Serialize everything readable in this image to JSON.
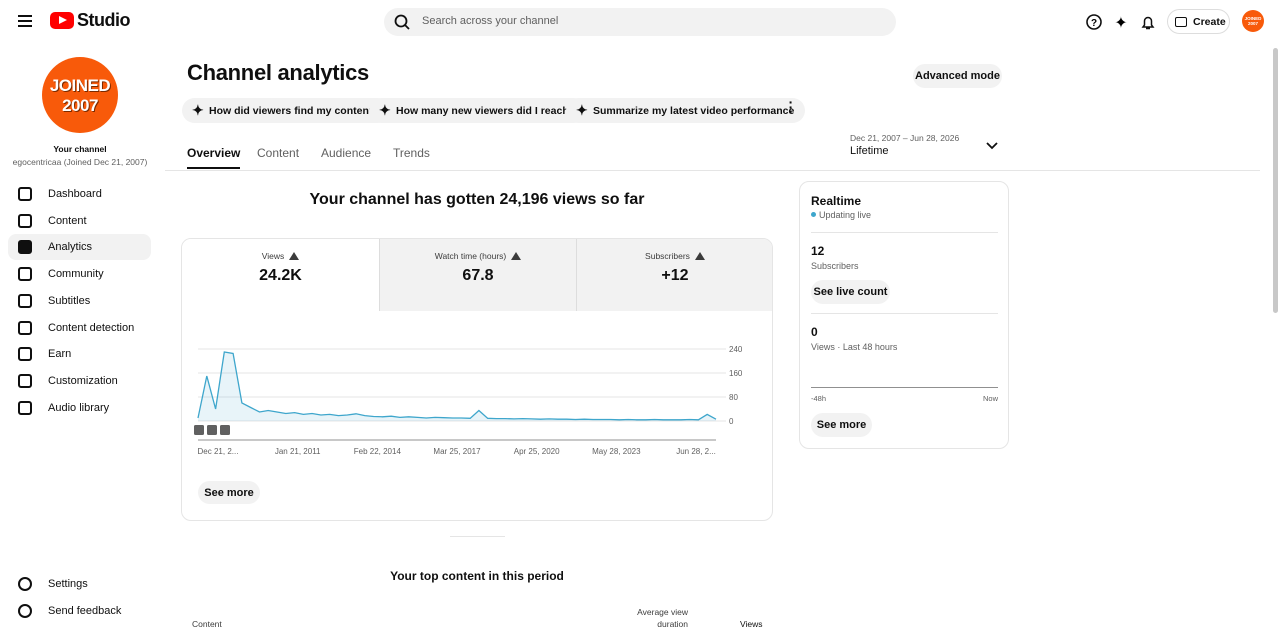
{
  "topbar": {
    "logo": "Studio",
    "search_placeholder": "Search across your channel",
    "create": "Create",
    "avatar_line1": "JOINED",
    "avatar_line2": "2007"
  },
  "sidebar": {
    "channel_label": "Your channel",
    "channel_name": "egocentricaa (Joined Dec 21, 2007)",
    "nav": [
      "Dashboard",
      "Content",
      "Analytics",
      "Community",
      "Subtitles",
      "Content detection",
      "Earn",
      "Customization",
      "Audio library"
    ],
    "active": 2,
    "bottom": [
      "Settings",
      "Send feedback"
    ]
  },
  "header": {
    "title": "Channel analytics",
    "advanced_mode": "Advanced mode",
    "chips": [
      "How did viewers find my content?",
      "How many new viewers did I reach?",
      "Summarize my latest video performance"
    ],
    "tabs": [
      "Overview",
      "Content",
      "Audience",
      "Trends"
    ],
    "active_tab": 0,
    "date_range": "Dec 21, 2007 – Jun 28, 2026",
    "period": "Lifetime"
  },
  "summary": {
    "headline": "Your channel has gotten 24,196 views so far",
    "metrics": [
      {
        "label": "Views",
        "value": "24.2K"
      },
      {
        "label": "Watch time (hours)",
        "value": "67.8"
      },
      {
        "label": "Subscribers",
        "value": "+12"
      }
    ],
    "see_more": "See more"
  },
  "chart": {
    "type": "line",
    "color": "#3ea6cc",
    "ylim": [
      0,
      240
    ],
    "yticks": [
      0,
      80,
      160,
      240
    ],
    "xlabels": [
      "Dec 21, 2...",
      "Jan 21, 2011",
      "Feb 22, 2014",
      "Mar 25, 2017",
      "Apr 25, 2020",
      "May 28, 2023",
      "Jun 28, 2..."
    ],
    "values": [
      10,
      150,
      40,
      230,
      225,
      60,
      45,
      30,
      35,
      30,
      25,
      28,
      22,
      25,
      20,
      22,
      18,
      20,
      24,
      18,
      15,
      14,
      16,
      12,
      14,
      12,
      10,
      12,
      11,
      10,
      10,
      9,
      35,
      9,
      8,
      8,
      7,
      8,
      7,
      6,
      7,
      6,
      6,
      5,
      6,
      5,
      5,
      5,
      4,
      5,
      4,
      4,
      5,
      4,
      4,
      4,
      5,
      4,
      22,
      6
    ]
  },
  "realtime": {
    "title": "Realtime",
    "status": "Updating live",
    "subscribers_value": "12",
    "subscribers_label": "Subscribers",
    "see_live_count": "See live count",
    "views_value": "0",
    "views_label": "Views · Last 48 hours",
    "axis_start": "-48h",
    "axis_end": "Now",
    "see_more": "See more"
  },
  "top_content": {
    "title": "Your top content in this period",
    "columns": [
      "Content",
      "Average view duration",
      "Views"
    ]
  }
}
